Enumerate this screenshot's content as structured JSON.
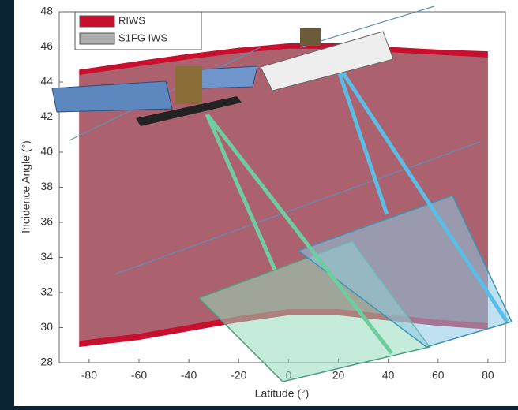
{
  "chart_data": {
    "type": "band",
    "x_label": "Latitude (°)",
    "y_label": "Incidence Angle (°)",
    "x": [
      -84,
      -60,
      -40,
      -20,
      0,
      20,
      40,
      60,
      80
    ],
    "series": [
      {
        "name": "RIWS",
        "color": "#c8102e",
        "high": [
          44.7,
          45.2,
          45.6,
          45.95,
          46.2,
          46.2,
          46.0,
          45.85,
          45.75
        ],
        "low": [
          28.9,
          29.3,
          29.8,
          30.3,
          30.7,
          30.7,
          30.4,
          30.1,
          29.9
        ]
      },
      {
        "name": "S1FG IWS",
        "color": "#9a9a9a",
        "high": [
          44.4,
          44.9,
          45.3,
          45.65,
          45.9,
          45.9,
          45.7,
          45.55,
          45.4
        ],
        "low": [
          29.25,
          29.65,
          30.15,
          30.65,
          31.05,
          31.05,
          30.75,
          30.45,
          30.25
        ]
      }
    ],
    "xlim": [
      -92,
      87
    ],
    "ylim": [
      28,
      48
    ],
    "xticks": [
      -80,
      -60,
      -40,
      -20,
      0,
      20,
      40,
      60,
      80
    ],
    "yticks": [
      28,
      30,
      32,
      34,
      36,
      38,
      40,
      42,
      44,
      46,
      48
    ]
  }
}
